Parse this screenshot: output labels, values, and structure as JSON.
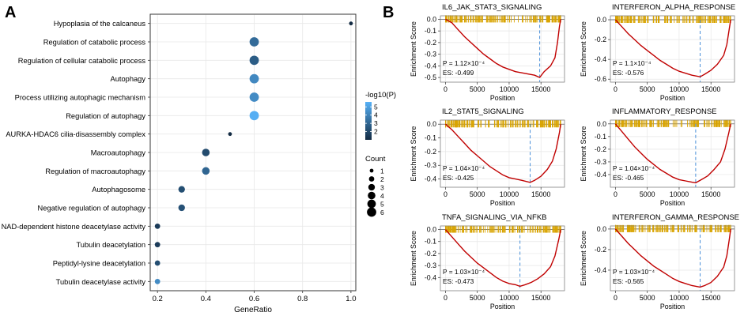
{
  "panels": {
    "a_label": "A",
    "b_label": "B"
  },
  "chart_data": [
    {
      "type": "scatter",
      "subtype": "dot-plot",
      "title": "",
      "xlabel": "GeneRatio",
      "ylabel": "",
      "xlim": [
        0.17,
        1.02
      ],
      "xticks": [
        0.2,
        0.4,
        0.6,
        0.8,
        1.0
      ],
      "xtick_labels": [
        "0.2",
        "0.4",
        "0.6",
        "0.8",
        "1.0"
      ],
      "categories": [
        "Hypoplasia of the calcaneus",
        "Regulation of catabolic process",
        "Regulation of cellular catabolic process",
        "Autophagy",
        "Process utilizing autophagic mechanism",
        "Regulation of autophagy",
        "AURKA-HDAC6 cilia-disassembly complex",
        "Macroautophagy",
        "Regulation of macroautophagy",
        "Autophagosome",
        "Negative regulation of autophagy",
        "NAD-dependent histone deacetylase activity",
        "Tubulin deacetylation",
        "Peptidyl-lysine deacetylation",
        "Tubulin deacetylase activity"
      ],
      "gene_ratio": [
        1.0,
        0.6,
        0.6,
        0.6,
        0.6,
        0.6,
        0.5,
        0.4,
        0.4,
        0.3,
        0.3,
        0.2,
        0.2,
        0.2,
        0.2
      ],
      "count": [
        1,
        6,
        6,
        6,
        6,
        6,
        1,
        4,
        4,
        3,
        3,
        2,
        2,
        2,
        2
      ],
      "neg_log10_p": [
        1.0,
        3.2,
        2.7,
        4.2,
        4.3,
        5.5,
        1.0,
        2.1,
        3.0,
        2.2,
        2.3,
        1.6,
        1.6,
        2.2,
        4.3
      ],
      "color_legend": {
        "title": "-log10(P)",
        "ticks": [
          2,
          3,
          4,
          5
        ],
        "min": 1.0,
        "max": 5.6,
        "low_color": "#132B43",
        "high_color": "#56B1F7"
      },
      "size_legend": {
        "title": "Count",
        "values": [
          1,
          2,
          3,
          4,
          5,
          6
        ]
      }
    },
    {
      "type": "line",
      "subtype": "gsea-enrichment",
      "xlabel": "Position",
      "ylabel": "Enrichment Score",
      "line_color": "#C00000",
      "hit_color": "#D9A400",
      "dash_color": "#4A90D9",
      "panels": [
        {
          "title": "IL6_JAK_STAT3_SIGNALING",
          "p_value": "P = 1.12×10⁻⁴",
          "es": "ES: -0.499",
          "ylim": [
            -0.54,
            0.03
          ],
          "yticks": [
            0,
            -0.1,
            -0.2,
            -0.3,
            -0.4,
            -0.5
          ],
          "ytick_labels": [
            "0.0",
            "-0.1",
            "-0.2",
            "-0.3",
            "-0.4",
            "-0.5"
          ],
          "xlim": [
            -800,
            18700
          ],
          "xticks": [
            0,
            5000,
            10000,
            15000
          ],
          "xtick_labels": [
            "0",
            "5000",
            "10000",
            "15000"
          ],
          "min_position": 14800,
          "curve_x": [
            0,
            1000,
            2000,
            3000,
            4000,
            5000,
            6000,
            7000,
            8000,
            9000,
            10000,
            11000,
            12000,
            13000,
            14000,
            14800,
            15500,
            16500,
            17200,
            17600,
            17900,
            18100
          ],
          "curve_y": [
            0,
            -0.03,
            -0.09,
            -0.15,
            -0.2,
            -0.25,
            -0.3,
            -0.34,
            -0.38,
            -0.41,
            -0.43,
            -0.45,
            -0.46,
            -0.47,
            -0.48,
            -0.499,
            -0.45,
            -0.4,
            -0.33,
            -0.2,
            -0.06,
            0
          ]
        },
        {
          "title": "INTERFERON_ALPHA_RESPONSE",
          "p_value": "P = 1.1×10⁻⁴",
          "es": "ES: -0.576",
          "ylim": [
            -0.63,
            0.04
          ],
          "yticks": [
            0,
            -0.2,
            -0.4,
            -0.6
          ],
          "ytick_labels": [
            "0.0",
            "-0.2",
            "-0.4",
            "-0.6"
          ],
          "xlim": [
            -800,
            18700
          ],
          "xticks": [
            0,
            5000,
            10000,
            15000
          ],
          "xtick_labels": [
            "0",
            "5000",
            "10000",
            "15000"
          ],
          "min_position": 13300,
          "curve_x": [
            0,
            1000,
            2000,
            3000,
            4000,
            5000,
            6000,
            7000,
            8000,
            9000,
            10000,
            11000,
            12000,
            13300,
            14000,
            15000,
            16000,
            17000,
            17500,
            17900,
            18100
          ],
          "curve_y": [
            0,
            -0.07,
            -0.14,
            -0.2,
            -0.26,
            -0.31,
            -0.36,
            -0.41,
            -0.45,
            -0.49,
            -0.52,
            -0.54,
            -0.56,
            -0.576,
            -0.55,
            -0.51,
            -0.45,
            -0.36,
            -0.25,
            -0.08,
            0
          ]
        },
        {
          "title": "IL2_STAT5_SIGNALING",
          "p_value": "P = 1.04×10⁻⁴",
          "es": "ES: -0.425",
          "ylim": [
            -0.46,
            0.03
          ],
          "yticks": [
            0,
            -0.1,
            -0.2,
            -0.3,
            -0.4
          ],
          "ytick_labels": [
            "0.0",
            "-0.1",
            "-0.2",
            "-0.3",
            "-0.4"
          ],
          "xlim": [
            -800,
            18700
          ],
          "xticks": [
            0,
            5000,
            10000,
            15000
          ],
          "xtick_labels": [
            "0",
            "5000",
            "10000",
            "15000"
          ],
          "min_position": 13300,
          "curve_x": [
            0,
            1000,
            2000,
            3000,
            4000,
            5000,
            6000,
            7000,
            8000,
            9000,
            10000,
            11000,
            12000,
            13300,
            14000,
            15000,
            16000,
            16800,
            17400,
            17900,
            18100
          ],
          "curve_y": [
            0,
            -0.04,
            -0.09,
            -0.14,
            -0.19,
            -0.23,
            -0.27,
            -0.31,
            -0.34,
            -0.37,
            -0.39,
            -0.4,
            -0.41,
            -0.425,
            -0.41,
            -0.38,
            -0.33,
            -0.27,
            -0.18,
            -0.06,
            0
          ]
        },
        {
          "title": "INFLAMMATORY_RESPONSE",
          "p_value": "P = 1.04×10⁻⁴",
          "es": "ES: -0.465",
          "ylim": [
            -0.5,
            0.03
          ],
          "yticks": [
            0,
            -0.1,
            -0.2,
            -0.3,
            -0.4
          ],
          "ytick_labels": [
            "0.0",
            "-0.1",
            "-0.2",
            "-0.3",
            "-0.4"
          ],
          "xlim": [
            -800,
            18700
          ],
          "xticks": [
            0,
            5000,
            10000,
            15000
          ],
          "xtick_labels": [
            "0",
            "5000",
            "10000",
            "15000"
          ],
          "min_position": 12600,
          "curve_x": [
            0,
            1000,
            2000,
            3000,
            4000,
            5000,
            6000,
            7000,
            8000,
            9000,
            10000,
            11000,
            12000,
            12600,
            13500,
            14500,
            15500,
            16500,
            17200,
            17800,
            18100
          ],
          "curve_y": [
            0,
            -0.06,
            -0.12,
            -0.18,
            -0.23,
            -0.28,
            -0.32,
            -0.36,
            -0.39,
            -0.42,
            -0.44,
            -0.45,
            -0.46,
            -0.465,
            -0.44,
            -0.41,
            -0.36,
            -0.3,
            -0.2,
            -0.07,
            0
          ]
        },
        {
          "title": "TNFA_SIGNALING_VIA_NFKB",
          "p_value": "P = 1.03×10⁻⁴",
          "es": "ES: -0.473",
          "ylim": [
            -0.51,
            0.03
          ],
          "yticks": [
            0,
            -0.1,
            -0.2,
            -0.3,
            -0.4
          ],
          "ytick_labels": [
            "0.0",
            "-0.1",
            "-0.2",
            "-0.3",
            "-0.4"
          ],
          "xlim": [
            -800,
            18700
          ],
          "xticks": [
            0,
            5000,
            10000,
            15000
          ],
          "xtick_labels": [
            "0",
            "5000",
            "10000",
            "15000"
          ],
          "min_position": 11700,
          "curve_x": [
            0,
            1000,
            2000,
            3000,
            4000,
            5000,
            6000,
            7000,
            8000,
            9000,
            10000,
            11000,
            11700,
            12500,
            13500,
            14500,
            15500,
            16500,
            17200,
            17800,
            18100
          ],
          "curve_y": [
            0,
            -0.06,
            -0.12,
            -0.18,
            -0.23,
            -0.28,
            -0.32,
            -0.36,
            -0.4,
            -0.43,
            -0.45,
            -0.46,
            -0.473,
            -0.46,
            -0.44,
            -0.41,
            -0.37,
            -0.31,
            -0.22,
            -0.08,
            0
          ]
        },
        {
          "title": "INTERFERON_GAMMA_RESPONSE",
          "p_value": "P = 1.03×10⁻⁴",
          "es": "ES: -0.565",
          "ylim": [
            -0.6,
            0.03
          ],
          "yticks": [
            0,
            -0.2,
            -0.4
          ],
          "ytick_labels": [
            "0.0",
            "-0.2",
            "-0.4"
          ],
          "xlim": [
            -800,
            18700
          ],
          "xticks": [
            0,
            5000,
            10000,
            15000
          ],
          "xtick_labels": [
            "0",
            "5000",
            "10000",
            "15000"
          ],
          "min_position": 13300,
          "curve_x": [
            0,
            1000,
            2000,
            3000,
            4000,
            5000,
            6000,
            7000,
            8000,
            9000,
            10000,
            11000,
            12000,
            13300,
            14000,
            15000,
            16000,
            17000,
            17500,
            17900,
            18100
          ],
          "curve_y": [
            0,
            -0.07,
            -0.14,
            -0.2,
            -0.26,
            -0.31,
            -0.36,
            -0.4,
            -0.44,
            -0.48,
            -0.51,
            -0.53,
            -0.55,
            -0.565,
            -0.55,
            -0.52,
            -0.46,
            -0.37,
            -0.26,
            -0.09,
            0
          ]
        }
      ]
    }
  ]
}
